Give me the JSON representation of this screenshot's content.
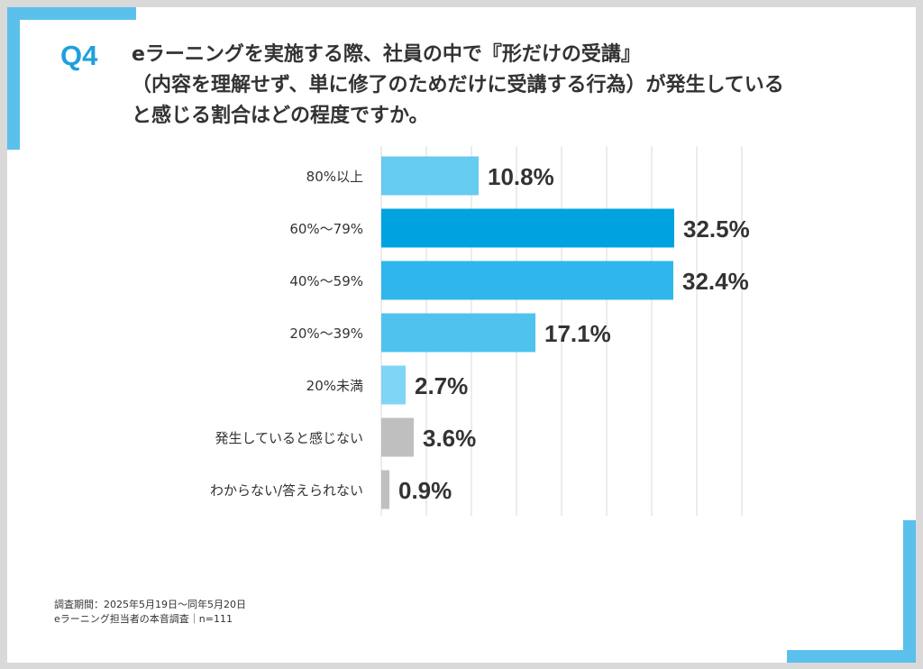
{
  "header": {
    "q_label": "Q4",
    "question_lines": [
      "eラーニングを実施する際、社員の中で『形だけの受講』",
      "（内容を理解せず、単に修了のためだけに受講する行為）が発生している",
      "と感じる割合はどの程度ですか。"
    ]
  },
  "chart_data": {
    "type": "bar",
    "orientation": "horizontal",
    "categories": [
      "80%以上",
      "60%～79%",
      "40%～59%",
      "20%～39%",
      "20%未満",
      "発生していると感じない",
      "わからない/答えられない"
    ],
    "values": [
      10.8,
      32.5,
      32.4,
      17.1,
      2.7,
      3.6,
      0.9
    ],
    "value_labels": [
      "10.8%",
      "32.5%",
      "32.4%",
      "17.1%",
      "2.7%",
      "3.6%",
      "0.9%"
    ],
    "bar_colors": [
      "#66cbf0",
      "#00a3e0",
      "#2fb6ec",
      "#4fc3ee",
      "#7fd5f5",
      "#bfbfbf",
      "#bfbfbf"
    ],
    "xlim": [
      0,
      40
    ],
    "grid": true
  },
  "footer": {
    "note_lines": [
      "調査期間：2025年5月19日～同年5月20日",
      "eラーニング担当者の本音調査｜n=111"
    ]
  },
  "colors": {
    "accent": "#5bc0eb",
    "q_label": "#1ea0dc",
    "text": "#333333",
    "grid": "#d9d9d9"
  }
}
